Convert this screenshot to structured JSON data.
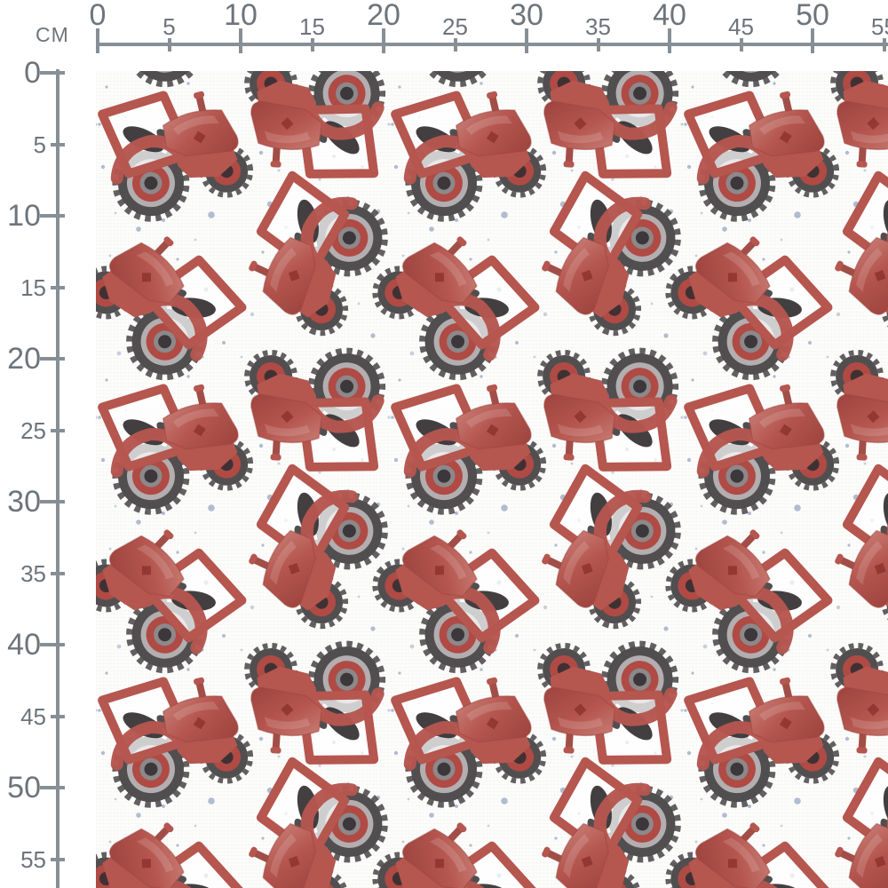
{
  "rulers": {
    "unit": "CM",
    "top": {
      "labels": [
        "0",
        "5",
        "10",
        "15",
        "20",
        "25",
        "30",
        "35",
        "40",
        "45",
        "50",
        "55"
      ]
    },
    "left": {
      "labels": [
        "0",
        "5",
        "10",
        "15",
        "20",
        "25",
        "30",
        "35",
        "40",
        "45",
        "50",
        "55"
      ]
    }
  },
  "fabric": {
    "motif": "red watercolor tractors with blue speckles on white",
    "repeat_cm": "approx 20.5 x 20.5"
  },
  "colors": {
    "ruler_line": "#878f96",
    "ruler_label": "#6d747c",
    "fabric_bg": "#fdfdfc",
    "tractor_red": "#b5564f",
    "tractor_red_dark": "#9d443e",
    "tractor_red_light": "#c87e75",
    "tractor_logo_red": "#8e332e",
    "wheel_dark": "#484446",
    "wheel_mid": "#8d888a",
    "wheel_light": "#b3aeb0",
    "hub_red": "#b04a44",
    "seat_black": "#332f31",
    "speckle": "#7288ad",
    "speckle_light": "#a3b2c9"
  }
}
